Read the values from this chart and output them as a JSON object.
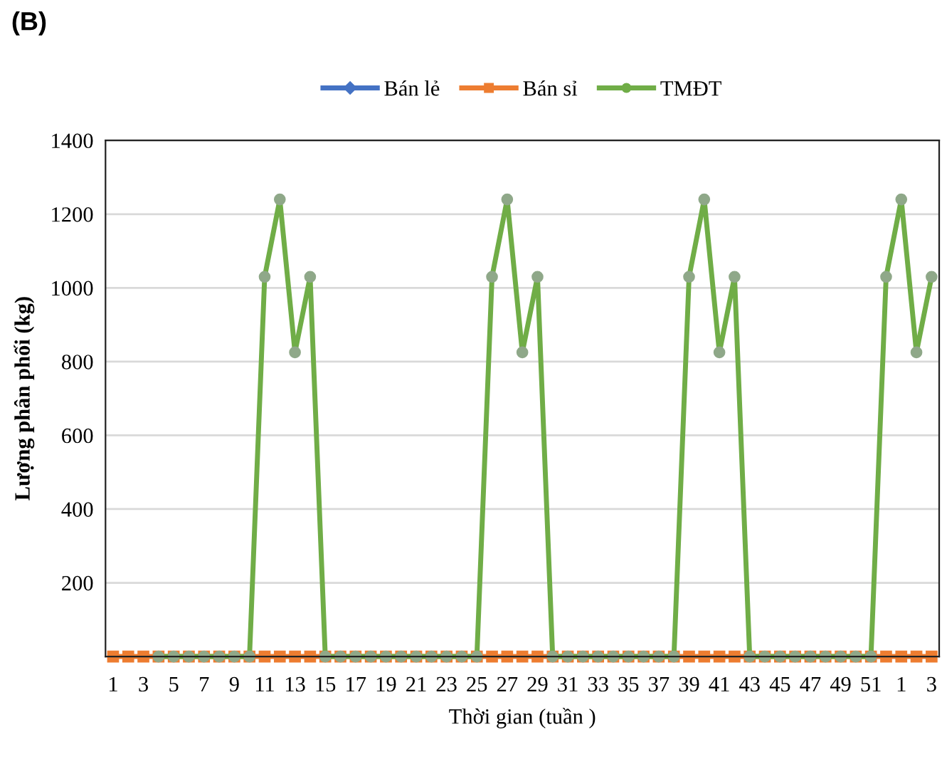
{
  "chart_data": {
    "type": "line",
    "title": "(B)",
    "xlabel": "Thời gian (tuần )",
    "ylabel": "Lượng phân phối (kg)",
    "categories": [
      "1",
      null,
      "3",
      null,
      "5",
      null,
      "7",
      null,
      "9",
      null,
      "11",
      null,
      "13",
      null,
      "15",
      null,
      "17",
      null,
      "19",
      null,
      "21",
      null,
      "23",
      null,
      "25",
      null,
      "27",
      null,
      "29",
      null,
      "31",
      null,
      "33",
      null,
      "35",
      null,
      "37",
      null,
      "39",
      null,
      "41",
      null,
      "43",
      null,
      "45",
      null,
      "47",
      null,
      "49",
      null,
      "51",
      null,
      "1",
      null,
      "3"
    ],
    "series": [
      {
        "name": "Bán lẻ",
        "color": "#4472c4",
        "marker": "diamond",
        "values": [
          null,
          null,
          null,
          null,
          null,
          null,
          null,
          null,
          null,
          null,
          null,
          null,
          null,
          null,
          null,
          null,
          null,
          null,
          null,
          null,
          null,
          null,
          null,
          null,
          null,
          null,
          null,
          null,
          null,
          null,
          null,
          null,
          null,
          null,
          null,
          null,
          null,
          null,
          null,
          null,
          null,
          null,
          null,
          null,
          null,
          null,
          null,
          null,
          null,
          null,
          null,
          null,
          null,
          null,
          null
        ]
      },
      {
        "name": "Bán sỉ",
        "color": "#ed7d31",
        "marker": "square",
        "values": [
          0,
          0,
          0,
          0,
          0,
          0,
          0,
          0,
          0,
          0,
          0,
          0,
          0,
          0,
          0,
          0,
          0,
          0,
          0,
          0,
          0,
          0,
          0,
          0,
          0,
          0,
          0,
          0,
          0,
          0,
          0,
          0,
          0,
          0,
          0,
          0,
          0,
          0,
          0,
          0,
          0,
          0,
          0,
          0,
          0,
          0,
          0,
          0,
          0,
          0,
          0,
          0,
          0,
          0,
          0
        ]
      },
      {
        "name": "TMĐT",
        "color": "#70ad47",
        "marker": "circle",
        "values": [
          null,
          null,
          null,
          0,
          0,
          0,
          0,
          0,
          0,
          0,
          1030,
          1240,
          825,
          1030,
          0,
          0,
          0,
          0,
          0,
          0,
          0,
          0,
          0,
          0,
          0,
          1030,
          1240,
          825,
          1030,
          0,
          0,
          0,
          0,
          0,
          0,
          0,
          0,
          0,
          1030,
          1240,
          825,
          1030,
          0,
          0,
          0,
          0,
          0,
          0,
          0,
          0,
          0,
          1030,
          1240,
          825,
          1030
        ]
      }
    ],
    "ylim": [
      0,
      1400
    ],
    "yticks": [
      200,
      400,
      600,
      800,
      1000,
      1200,
      1400
    ],
    "grid": "y",
    "legend": "top"
  }
}
